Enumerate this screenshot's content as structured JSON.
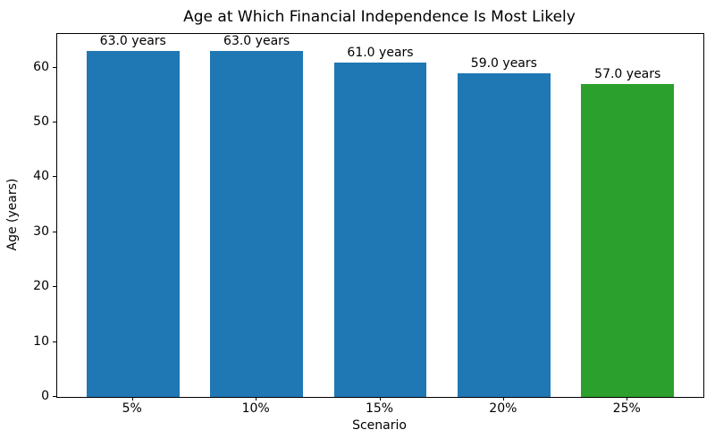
{
  "chart_data": {
    "type": "bar",
    "title": "Age at Which Financial Independence Is Most Likely",
    "xlabel": "Scenario",
    "ylabel": "Age (years)",
    "categories": [
      "5%",
      "10%",
      "15%",
      "20%",
      "25%"
    ],
    "values": [
      63.0,
      63.0,
      61.0,
      59.0,
      57.0
    ],
    "bar_labels": [
      "63.0 years",
      "63.0 years",
      "61.0 years",
      "59.0 years",
      "57.0 years"
    ],
    "bar_colors": [
      "#1f77b4",
      "#1f77b4",
      "#1f77b4",
      "#1f77b4",
      "#2ca02c"
    ],
    "highlight_color": "#2ca02c",
    "default_bar_color": "#1f77b4",
    "yticks": [
      0,
      10,
      20,
      30,
      40,
      50,
      60
    ],
    "ylim": [
      0,
      66.15
    ],
    "grid": false,
    "legend_position": "none",
    "background_color": "#ffffff",
    "text_color": "#000000"
  }
}
